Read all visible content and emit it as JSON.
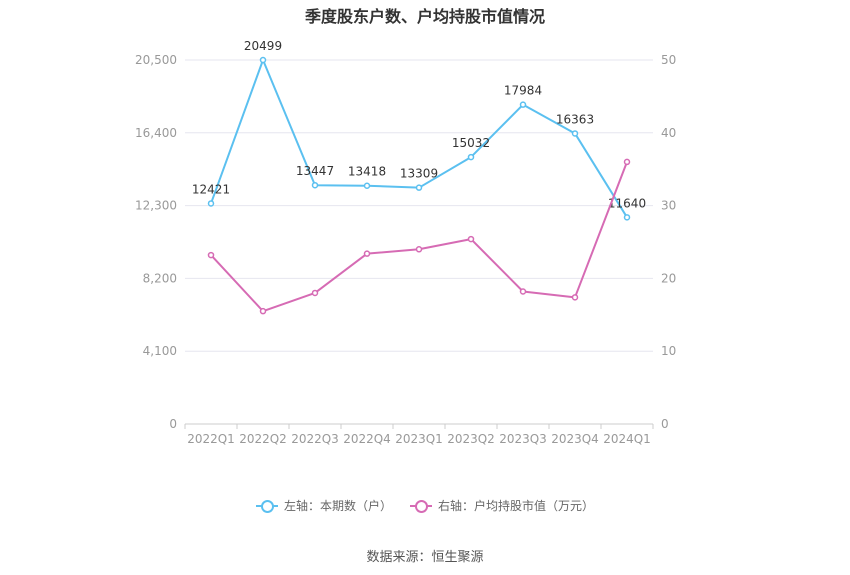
{
  "title": "季度股东户数、户均持股市值情况",
  "source": "数据来源：恒生聚源",
  "chart_data": {
    "type": "line",
    "categories": [
      "2022Q1",
      "2022Q2",
      "2022Q3",
      "2022Q4",
      "2023Q1",
      "2023Q2",
      "2023Q3",
      "2023Q4",
      "2024Q1"
    ],
    "left_axis": {
      "ticks": [
        "0",
        "4,100",
        "8,200",
        "12,300",
        "16,400",
        "20,500"
      ],
      "ylim": [
        0,
        20500
      ]
    },
    "right_axis": {
      "ticks": [
        "0",
        "10",
        "20",
        "30",
        "40",
        "50"
      ],
      "ylim": [
        0,
        50
      ]
    },
    "grid": true,
    "legend_position": "bottom",
    "series": [
      {
        "name": "左轴：本期数（户）",
        "axis": "left",
        "color": "#5bc0f0",
        "values": [
          12421,
          20499,
          13447,
          13418,
          13309,
          15032,
          17984,
          16363,
          11640
        ],
        "labels": [
          "12421",
          "20499",
          "13447",
          "13418",
          "13309",
          "15032",
          "17984",
          "16363",
          "11640"
        ]
      },
      {
        "name": "右轴：户均持股市值（万元）",
        "axis": "right",
        "color": "#d66bb4",
        "values": [
          23.2,
          15.5,
          18.0,
          23.4,
          24.0,
          25.4,
          18.2,
          17.4,
          36.0
        ]
      }
    ]
  }
}
